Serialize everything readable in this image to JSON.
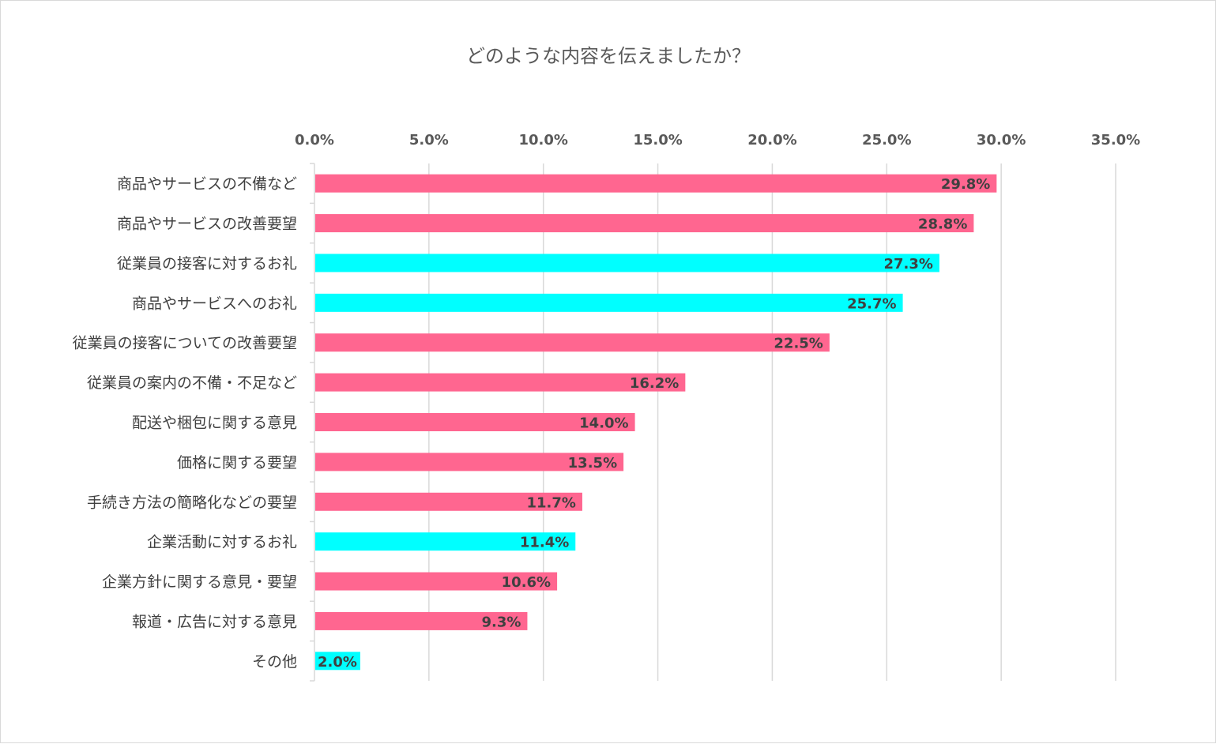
{
  "chart_data": {
    "type": "bar",
    "orientation": "horizontal",
    "title": "どのような内容を伝えましたか？",
    "xlim": [
      0,
      35
    ],
    "x_ticks": [
      "0.0%",
      "5.0%",
      "10.0%",
      "15.0%",
      "20.0%",
      "25.0%",
      "30.0%",
      "35.0%"
    ],
    "x_tick_values": [
      0,
      5,
      10,
      15,
      20,
      25,
      30,
      35
    ],
    "axis_position": "top",
    "grid": true,
    "colors": {
      "pink": "#ff6690",
      "cyan": "#00ffff"
    },
    "categories": [
      "商品やサービスの不備など",
      "商品やサービスの改善要望",
      "従業員の接客に対するお礼",
      "商品やサービスへのお礼",
      "従業員の接客についての改善要望",
      "従業員の案内の不備・不足など",
      "配送や梱包に関する意見",
      "価格に関する要望",
      "手続き方法の簡略化などの要望",
      "企業活動に対するお礼",
      "企業方針に関する意見・要望",
      "報道・広告に対する意見",
      "その他"
    ],
    "values": [
      29.8,
      28.8,
      27.3,
      25.7,
      22.5,
      16.2,
      14.0,
      13.5,
      11.7,
      11.4,
      10.6,
      9.3,
      2.0
    ],
    "value_labels": [
      "29.8%",
      "28.8%",
      "27.3%",
      "25.7%",
      "22.5%",
      "16.2%",
      "14.0%",
      "13.5%",
      "11.7%",
      "11.4%",
      "10.6%",
      "9.3%",
      "2.0%"
    ],
    "bar_colors": [
      "pink",
      "pink",
      "cyan",
      "cyan",
      "pink",
      "pink",
      "pink",
      "pink",
      "pink",
      "cyan",
      "pink",
      "pink",
      "cyan"
    ]
  }
}
